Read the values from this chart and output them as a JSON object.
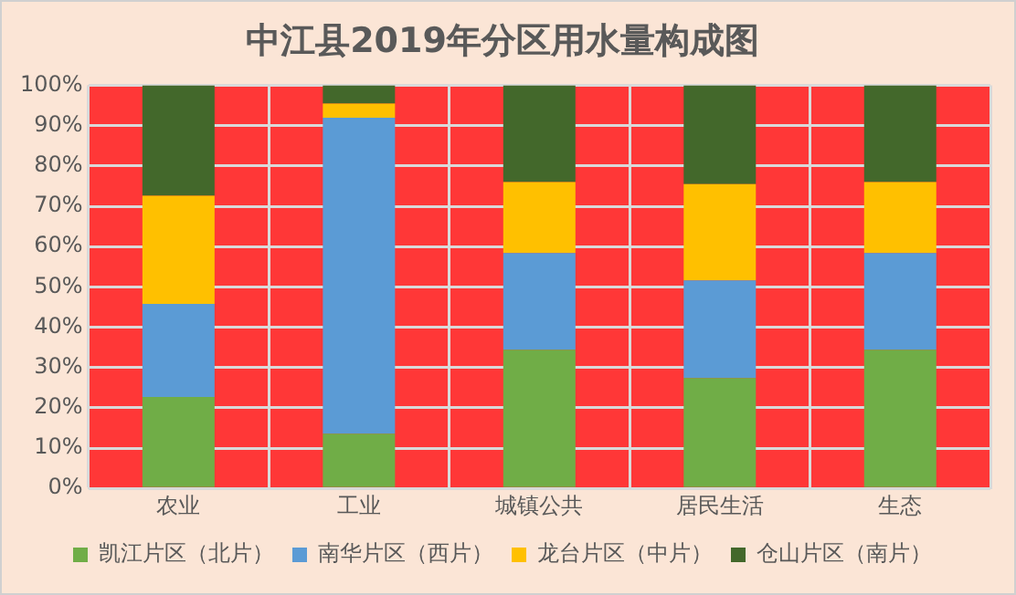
{
  "chart_data": {
    "type": "bar",
    "title": "中江县2019年分区用水量构成图",
    "stacked": true,
    "categories": [
      "农业",
      "工业",
      "城镇公共",
      "居民生活",
      "生态"
    ],
    "series": [
      {
        "name": "凯江片区（北片）",
        "color": "#70ad47",
        "values": [
          22.7,
          13.6,
          34.4,
          27.4,
          34.4
        ]
      },
      {
        "name": "南华片区（西片）",
        "color": "#5b9bd5",
        "values": [
          23.1,
          78.4,
          24.0,
          24.2,
          24.0
        ]
      },
      {
        "name": "龙台片区（中片）",
        "color": "#ffc000",
        "values": [
          26.8,
          3.5,
          17.6,
          23.9,
          17.6
        ]
      },
      {
        "name": "仓山片区（南片）",
        "color": "#43682b",
        "values": [
          27.4,
          4.5,
          24.0,
          24.5,
          24.0
        ]
      }
    ],
    "ylim": [
      0,
      100
    ],
    "yticks": [
      {
        "value": 0,
        "label": "0%"
      },
      {
        "value": 10,
        "label": "10%"
      },
      {
        "value": 20,
        "label": "20%"
      },
      {
        "value": 30,
        "label": "30%"
      },
      {
        "value": 40,
        "label": "40%"
      },
      {
        "value": 50,
        "label": "50%"
      },
      {
        "value": 60,
        "label": "60%"
      },
      {
        "value": 70,
        "label": "70%"
      },
      {
        "value": 80,
        "label": "80%"
      },
      {
        "value": 90,
        "label": "90%"
      },
      {
        "value": 100,
        "label": "100%"
      }
    ],
    "grid": true,
    "legend": "bottom"
  }
}
